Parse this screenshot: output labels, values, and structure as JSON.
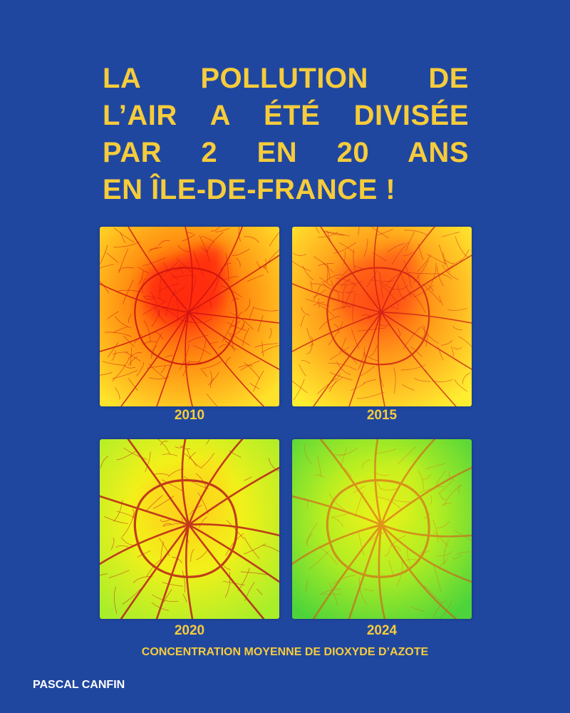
{
  "headline": {
    "lines": [
      "LA POLLUTION DE",
      "L’AIR A ÉTÉ DIVISÉE",
      "PAR 2 EN 20 ANS",
      "EN ÎLE-DE-FRANCE !"
    ]
  },
  "maps": [
    {
      "year": "2010",
      "level": 1.0
    },
    {
      "year": "2015",
      "level": 0.8
    },
    {
      "year": "2020",
      "level": 0.45
    },
    {
      "year": "2024",
      "level": 0.2
    }
  ],
  "caption": "CONCENTRATION MOYENNE DE DIOXYDE D’AZOTE",
  "author": "PASCAL CANFIN",
  "colors": {
    "background": "#2047a0",
    "accent": "#f6cc3b",
    "author": "#ffffff"
  }
}
